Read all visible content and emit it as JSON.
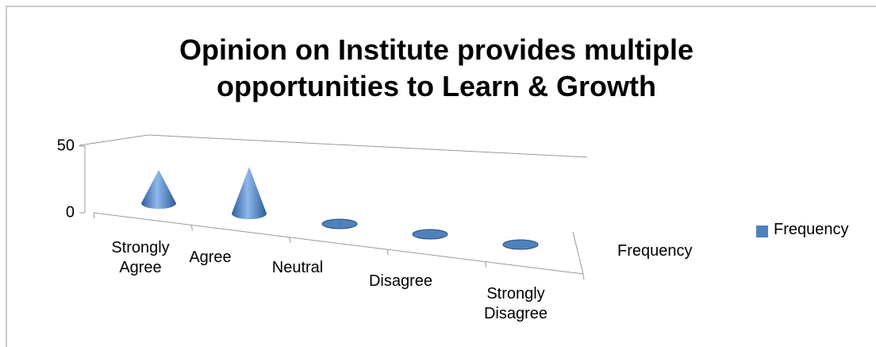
{
  "chart_data": {
    "type": "cone3d",
    "title": "Opinion on Institute provides multiple opportunities to Learn & Growth",
    "categories": [
      "Strongly Agree",
      "Agree",
      "Neutral",
      "Disagree",
      "Strongly Disagree"
    ],
    "series": [
      {
        "name": "Frequency",
        "color": "#4f81bd",
        "values": [
          25,
          35,
          0,
          0,
          0
        ]
      }
    ],
    "ylim": [
      0,
      50
    ],
    "yticks": [
      0,
      50
    ],
    "legend": "right"
  }
}
